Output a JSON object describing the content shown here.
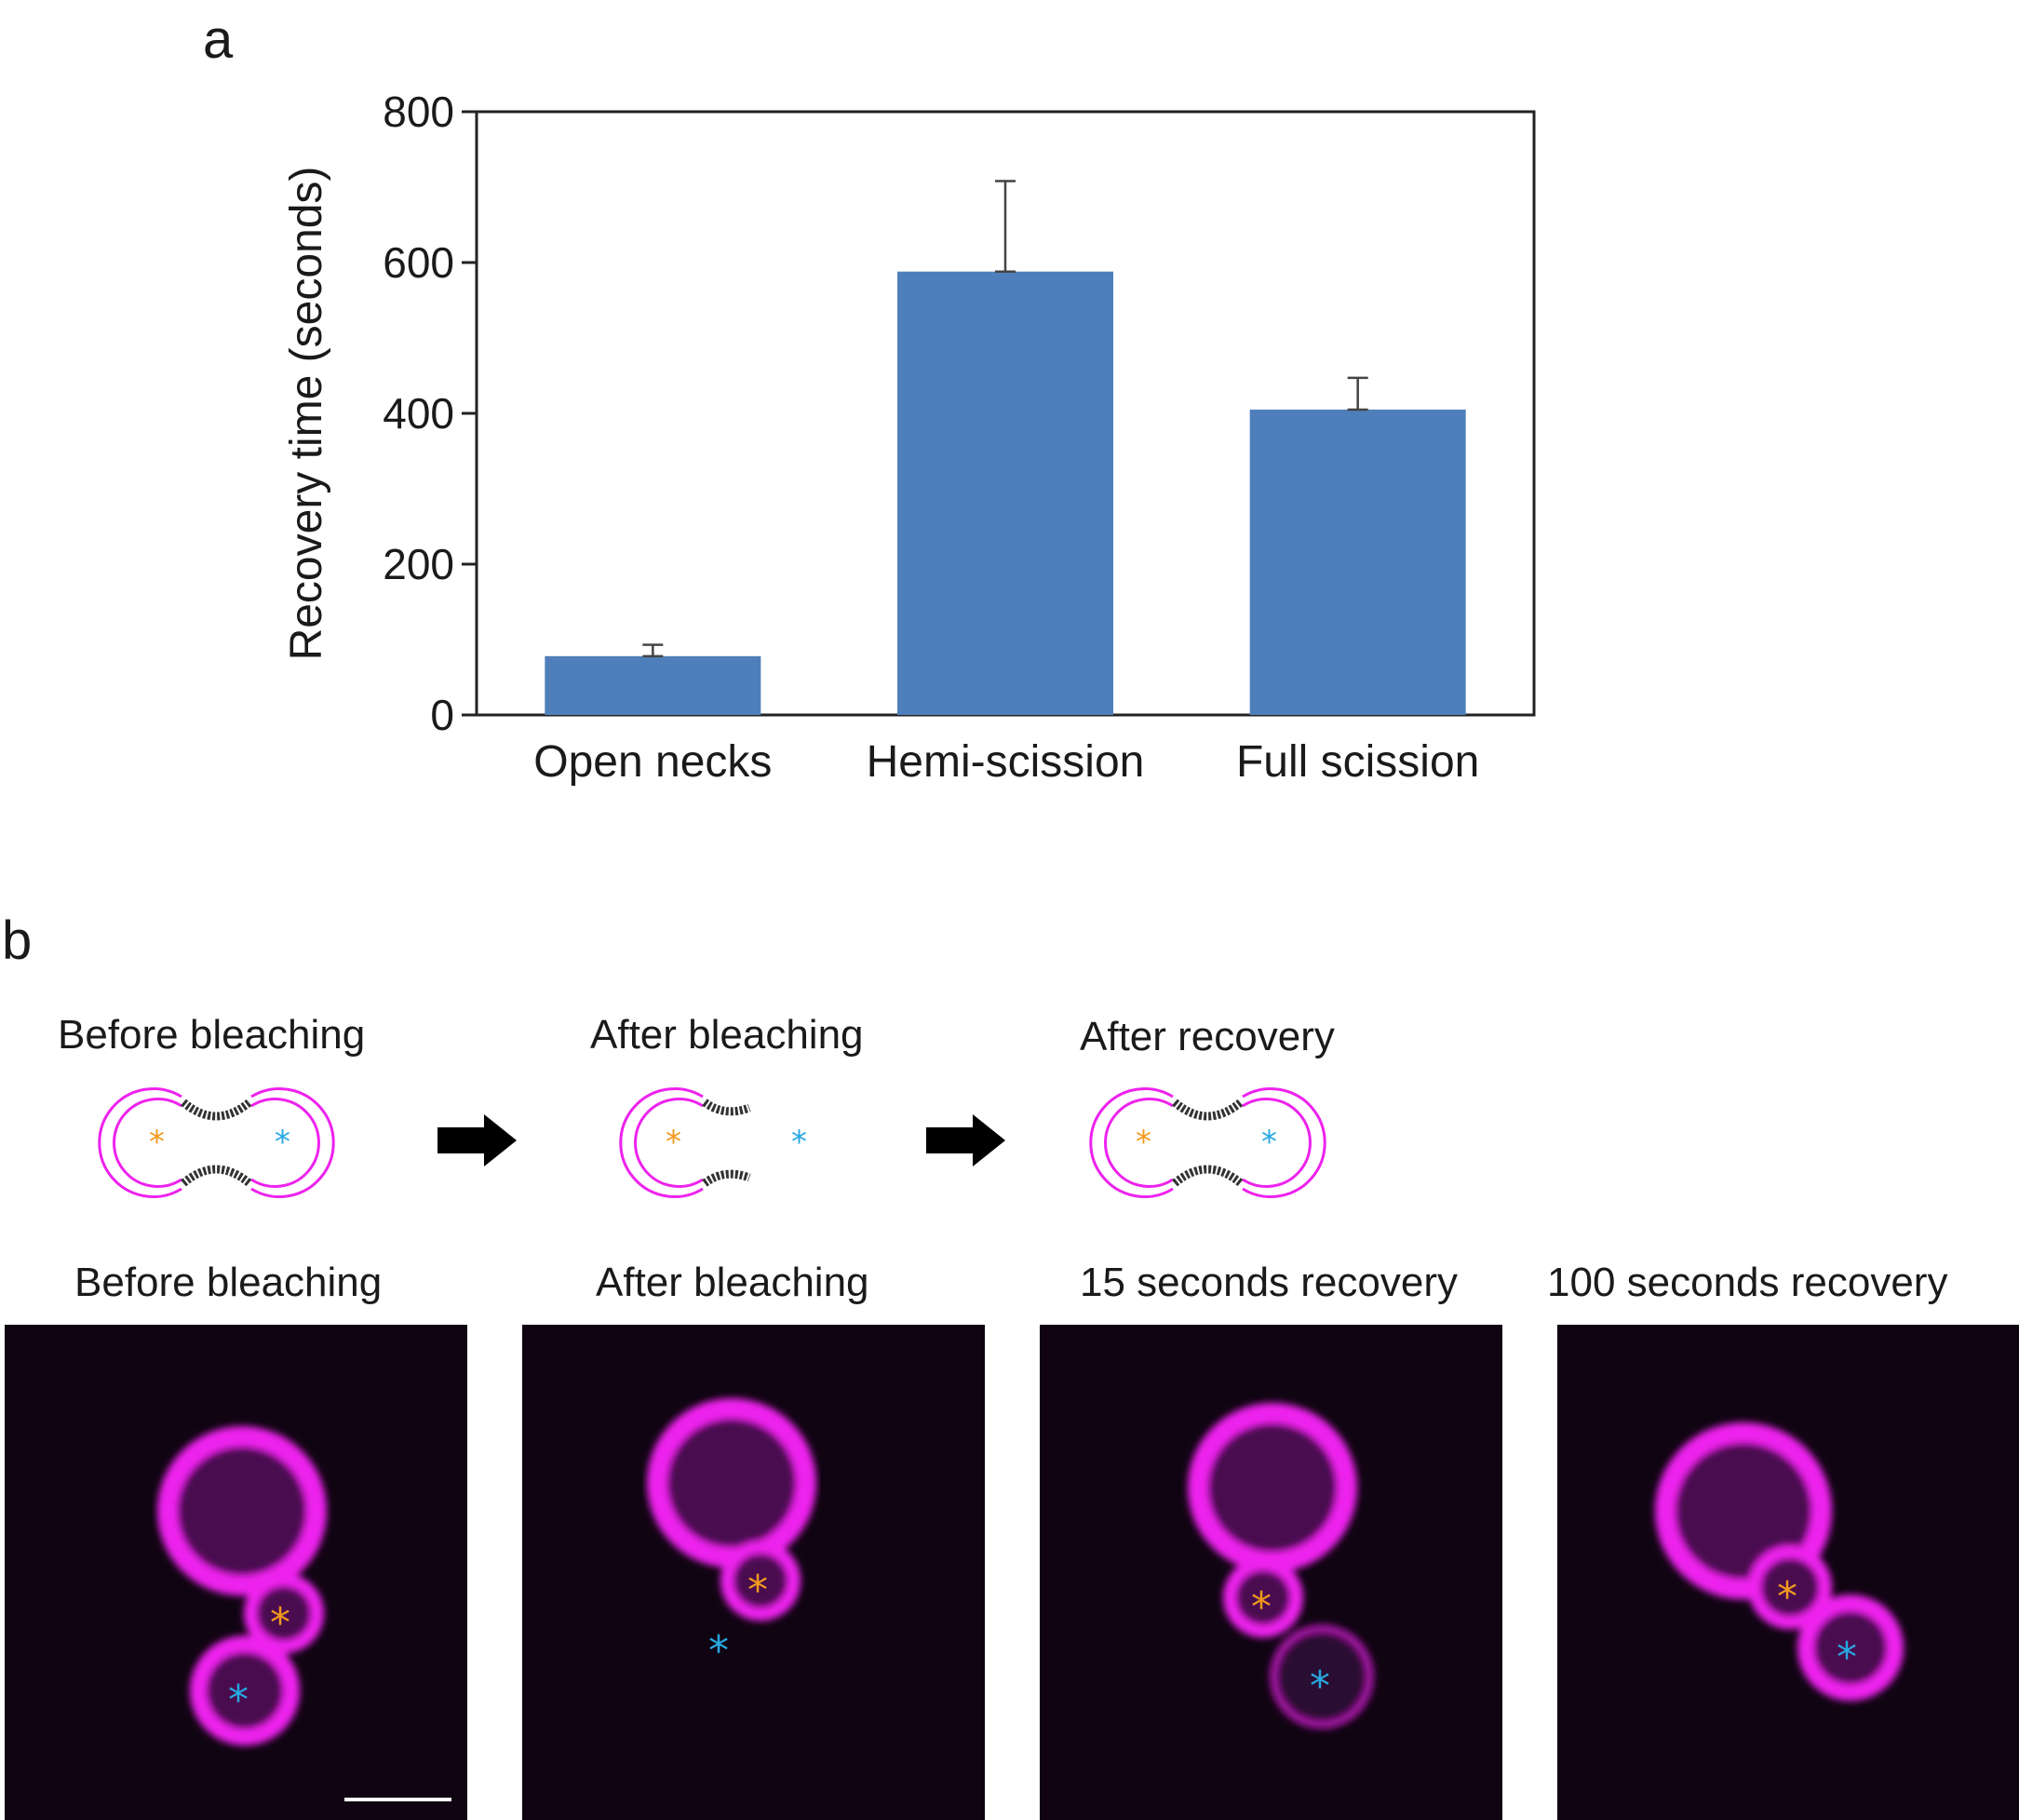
{
  "panels": {
    "a": "a",
    "b": "b"
  },
  "chart_data": {
    "type": "bar",
    "categories": [
      "Open necks",
      "Hemi-scission",
      "Full scission"
    ],
    "values": [
      78,
      588,
      405
    ],
    "error_upper": [
      93,
      708,
      447
    ],
    "xlabel": "",
    "ylabel": "Recovery time (seconds)",
    "ylim": [
      0,
      800
    ],
    "yticks": [
      0,
      200,
      400,
      600,
      800
    ],
    "grid": false,
    "bar_color": "#4f7fba"
  },
  "schematic": {
    "labels": [
      "Before bleaching",
      "After bleaching",
      "After recovery"
    ]
  },
  "micrographs": {
    "labels": [
      "Before bleaching",
      "After bleaching",
      "15 seconds recovery",
      "100 seconds recovery"
    ]
  },
  "colors": {
    "membrane": "#ee22ee",
    "marker_orange": "#f39a1e",
    "marker_blue": "#27a9e1"
  }
}
